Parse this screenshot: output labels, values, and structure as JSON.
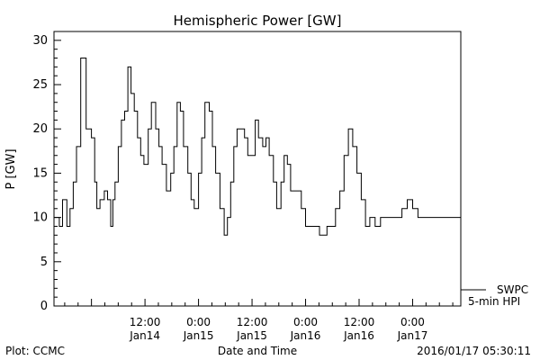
{
  "chart_data": {
    "type": "line",
    "title": "Hemispheric Power [GW]",
    "xlabel": "Date and Time",
    "ylabel": "P [GW]",
    "ylim": [
      0,
      31
    ],
    "yticks": [
      0,
      5,
      10,
      15,
      20,
      25,
      30
    ],
    "xlim": [
      -0.35,
      3.45
    ],
    "xtick_days": [
      0.5,
      1,
      1.5,
      2,
      2.5,
      3,
      3.5
    ],
    "xtick_labels": [
      [
        "12:00",
        "Jan14"
      ],
      [
        "0:00",
        "Jan15"
      ],
      [
        "12:00",
        "Jan15"
      ],
      [
        "0:00",
        "Jan16"
      ],
      [
        "12:00",
        "Jan16"
      ],
      [
        "0:00",
        "Jan17"
      ]
    ],
    "grid": false,
    "legend_position": "lower-right outside",
    "series": [
      {
        "name": "SWPC 5-min HPI",
        "x_unit": "days since 2016-01-14 00:00",
        "x": [
          -0.35,
          -0.3,
          -0.27,
          -0.23,
          -0.2,
          -0.17,
          -0.14,
          -0.1,
          -0.05,
          0,
          0.03,
          0.05,
          0.08,
          0.12,
          0.15,
          0.18,
          0.2,
          0.22,
          0.25,
          0.28,
          0.31,
          0.34,
          0.37,
          0.4,
          0.43,
          0.46,
          0.49,
          0.53,
          0.56,
          0.6,
          0.63,
          0.66,
          0.7,
          0.74,
          0.77,
          0.8,
          0.83,
          0.86,
          0.9,
          0.93,
          0.96,
          1,
          1.03,
          1.06,
          1.1,
          1.13,
          1.16,
          1.2,
          1.24,
          1.27,
          1.3,
          1.33,
          1.36,
          1.4,
          1.43,
          1.46,
          1.5,
          1.53,
          1.56,
          1.6,
          1.63,
          1.66,
          1.7,
          1.73,
          1.77,
          1.8,
          1.83,
          1.86,
          1.9,
          1.93,
          1.96,
          2,
          2.03,
          2.06,
          2.1,
          2.13,
          2.16,
          2.2,
          2.24,
          2.28,
          2.32,
          2.36,
          2.4,
          2.44,
          2.48,
          2.52,
          2.56,
          2.6,
          2.65,
          2.7,
          2.75,
          2.8,
          2.85,
          2.9,
          2.95,
          3,
          3.05,
          3.1,
          3.15,
          3.2,
          3.25,
          3.3,
          3.35,
          3.45
        ],
        "y": [
          10,
          9,
          12,
          9,
          11,
          14,
          18,
          28,
          20,
          19,
          14,
          11,
          12,
          13,
          12,
          9,
          12,
          14,
          18,
          21,
          22,
          27,
          24,
          22,
          19,
          17,
          16,
          20,
          23,
          20,
          18,
          16,
          13,
          15,
          18,
          23,
          22,
          18,
          15,
          12,
          11,
          15,
          19,
          23,
          22,
          18,
          15,
          11,
          8,
          10,
          14,
          18,
          20,
          20,
          19,
          17,
          17,
          21,
          19,
          18,
          19,
          17,
          14,
          11,
          14,
          17,
          16,
          13,
          13,
          13,
          11,
          9,
          9,
          9,
          9,
          8,
          8,
          9,
          9,
          11,
          13,
          17,
          20,
          18,
          15,
          12,
          9,
          10,
          9,
          10,
          10,
          10,
          10,
          11,
          12,
          11,
          10,
          10,
          10,
          10,
          10,
          10,
          10,
          10
        ]
      }
    ]
  },
  "footer": {
    "left": "Plot: CCMC",
    "timestamp": "2016/01/17 05:30:11"
  },
  "legend": {
    "line1": "SWPC",
    "line2": "5-min HPI"
  }
}
